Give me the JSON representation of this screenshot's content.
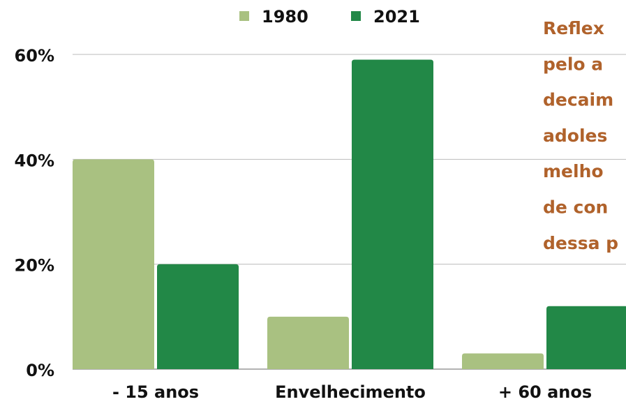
{
  "chart_data": {
    "type": "bar",
    "categories": [
      "- 15 anos",
      "Envelhecimento",
      "+ 60 anos"
    ],
    "series": [
      {
        "name": "1980",
        "color": "#a9c181",
        "values": [
          40,
          10,
          3
        ]
      },
      {
        "name": "2021",
        "color": "#228847",
        "values": [
          20,
          59,
          12
        ]
      }
    ],
    "ylim": [
      0,
      60
    ],
    "yticks": [
      {
        "value": 0,
        "label": "0%"
      },
      {
        "value": 20,
        "label": "20%"
      },
      {
        "value": 40,
        "label": "40%"
      },
      {
        "value": 60,
        "label": "60%"
      }
    ],
    "grid": true,
    "legend": "top",
    "annotation_lines": [
      "Reflex",
      "pelo  a",
      "decaim",
      "adoles",
      "melho",
      "de con",
      "dessa p"
    ]
  }
}
